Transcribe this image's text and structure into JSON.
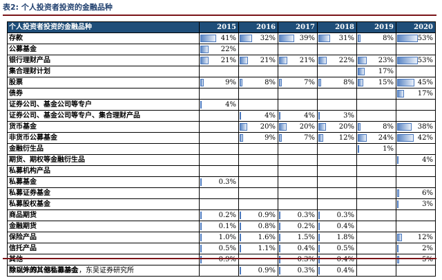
{
  "caption": "表2: 个人投资者投资的金融品种",
  "header": {
    "label": "个人投资者投资的金融品种",
    "years": [
      "2015",
      "2016",
      "2017",
      "2018",
      "2019",
      "2020"
    ]
  },
  "rows": [
    {
      "label": "存款",
      "values": [
        "41%",
        "32%",
        "39%",
        "31%",
        "8%",
        "53%"
      ]
    },
    {
      "label": "公募基金",
      "values": [
        "22%",
        "",
        "",
        "",
        "",
        ""
      ]
    },
    {
      "label": "银行理财产品",
      "values": [
        "21%",
        "21%",
        "21%",
        "22%",
        "23%",
        "53%"
      ]
    },
    {
      "label": "集合理财计划",
      "values": [
        "",
        "",
        "",
        "",
        "17%",
        ""
      ]
    },
    {
      "label": "股票",
      "values": [
        "9%",
        "8%",
        "7%",
        "8%",
        "15%",
        "45%"
      ]
    },
    {
      "label": "债券",
      "values": [
        "",
        "",
        "",
        "",
        "",
        "17%"
      ]
    },
    {
      "label": "证券公司、基金公司等专户",
      "values": [
        "4%",
        "",
        "",
        "",
        "",
        ""
      ]
    },
    {
      "label": "证券公司、基金公司等专户、集合理财产品",
      "values": [
        "",
        "4%",
        "4%",
        "3%",
        "",
        ""
      ]
    },
    {
      "label": "货币基金",
      "values": [
        "",
        "20%",
        "20%",
        "20%",
        "8%",
        "38%"
      ]
    },
    {
      "label": "非货币公募基金",
      "values": [
        "",
        "9%",
        "7%",
        "12%",
        "24%",
        "42%"
      ]
    },
    {
      "label": "金融衍生品",
      "values": [
        "",
        "",
        "",
        "",
        "1%",
        ""
      ]
    },
    {
      "label": "期货、期权等金融衍生品",
      "values": [
        "",
        "",
        "",
        "",
        "",
        "4%"
      ]
    },
    {
      "label": "私募机构产品",
      "values": [
        "",
        "",
        "",
        "",
        "",
        ""
      ]
    },
    {
      "label": "私募基金",
      "values": [
        "0.3%",
        "",
        "",
        "",
        "",
        ""
      ]
    },
    {
      "label": "私募证券基金",
      "values": [
        "",
        "",
        "",
        "",
        "",
        "6%"
      ]
    },
    {
      "label": "私募股权基金",
      "values": [
        "",
        "",
        "",
        "",
        "",
        "3%"
      ]
    },
    {
      "label": "商品期货",
      "values": [
        "0.2%",
        "0.9%",
        "0.3%",
        "0.3%",
        "",
        ""
      ]
    },
    {
      "label": "金融期货",
      "values": [
        "0.1%",
        "0.8%",
        "0.2%",
        "0.4%",
        "",
        ""
      ]
    },
    {
      "label": "保险产品",
      "values": [
        "1.0%",
        "1.6%",
        "1.5%",
        "1.8%",
        "",
        "12%"
      ]
    },
    {
      "label": "信托产品",
      "values": [
        "0.5%",
        "1.1%",
        "0.4%",
        "0.5%",
        "",
        "2%"
      ]
    },
    {
      "label": "其他",
      "values": [
        "0.9%",
        "",
        "0.3%",
        "0.4%",
        "",
        "5%"
      ]
    },
    {
      "label": "除以外的其他私募基金",
      "values": [
        "",
        "0.9%",
        "0.3%",
        "0.4%",
        "",
        ""
      ]
    }
  ],
  "source": "数据来源：基金业协会，东吴证券研究所",
  "colors": {
    "header_bg": "#1f4e79",
    "bar": "#5b86c4",
    "rule": "#7a1418"
  }
}
